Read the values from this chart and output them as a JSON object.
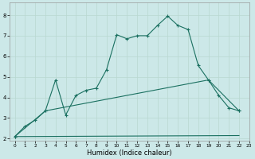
{
  "xlabel": "Humidex (Indice chaleur)",
  "background_color": "#cce8e8",
  "line_color": "#1a7060",
  "xlim": [
    -0.5,
    23
  ],
  "ylim": [
    1.9,
    8.6
  ],
  "xticks": [
    0,
    1,
    2,
    3,
    4,
    5,
    6,
    7,
    8,
    9,
    10,
    11,
    12,
    13,
    14,
    15,
    16,
    17,
    18,
    19,
    20,
    21,
    22,
    23
  ],
  "yticks": [
    2,
    3,
    4,
    5,
    6,
    7,
    8
  ],
  "series": [
    {
      "x": [
        0,
        1,
        2,
        3,
        4,
        5,
        6,
        7,
        8,
        9,
        10,
        11,
        12,
        13,
        14,
        15,
        16,
        17,
        18,
        19,
        20,
        21,
        22
      ],
      "y": [
        2.1,
        2.6,
        2.9,
        3.35,
        4.85,
        3.15,
        4.1,
        4.35,
        4.45,
        5.35,
        7.05,
        6.85,
        7.0,
        7.0,
        7.5,
        7.95,
        7.5,
        7.3,
        5.55,
        4.85,
        4.1,
        3.5,
        3.35
      ]
    },
    {
      "x": [
        0,
        3,
        19,
        22
      ],
      "y": [
        2.1,
        3.35,
        4.85,
        3.35
      ]
    },
    {
      "x": [
        0,
        22
      ],
      "y": [
        2.1,
        2.15
      ]
    }
  ]
}
